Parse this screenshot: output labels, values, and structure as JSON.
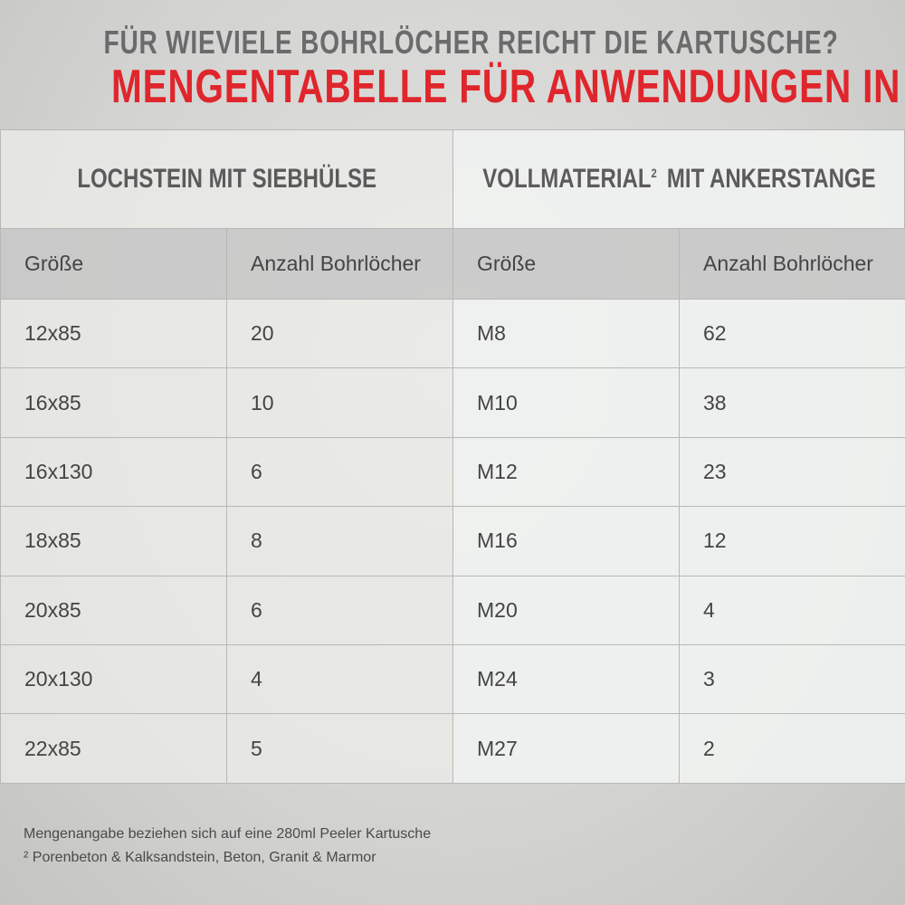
{
  "header": {
    "title": "FÜR WIEVIELE BOHRLÖCHER REICHT DIE KARTUSCHE?",
    "subtitle": "MENGENTABELLE FÜR ANWENDUNGEN IN"
  },
  "table": {
    "groups": [
      {
        "label": "LOCHSTEIN MIT SIEBHÜLSE"
      },
      {
        "label": "VOLLMATERIAL",
        "superscript": "2",
        "label_rest": "MIT ANKERSTANGE"
      }
    ],
    "columns": [
      "Größe",
      "Anzahl Bohrlöcher",
      "Größe",
      "Anzahl Bohrlöcher"
    ],
    "rows": [
      [
        "12x85",
        20,
        "M8",
        62
      ],
      [
        "16x85",
        10,
        "M10",
        38
      ],
      [
        "16x130",
        6,
        "M12",
        23
      ],
      [
        "18x85",
        8,
        "M16",
        12
      ],
      [
        "20x85",
        6,
        "M20",
        4
      ],
      [
        "20x130",
        4,
        "M24",
        3
      ],
      [
        "22x85",
        5,
        "M27",
        2
      ]
    ]
  },
  "footnotes": [
    "Mengenangabe beziehen sich auf eine 280ml Peeler Kartusche",
    "² Porenbeton & Kalksandstein, Beton, Granit & Marmor"
  ]
}
